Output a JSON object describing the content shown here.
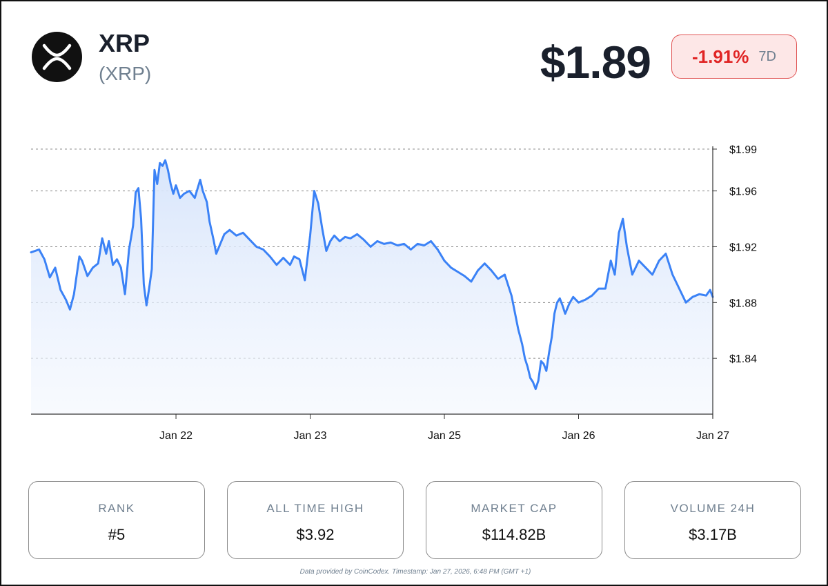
{
  "coin": {
    "name": "XRP",
    "symbol": "(XRP)",
    "logo_icon": "xrp-logo-icon"
  },
  "price": "$1.89",
  "change": {
    "value": "-1.91%",
    "period": "7D",
    "color": "#e02424"
  },
  "stats": [
    {
      "label": "RANK",
      "value": "#5"
    },
    {
      "label": "ALL TIME HIGH",
      "value": "$3.92"
    },
    {
      "label": "MARKET CAP",
      "value": "$114.82B"
    },
    {
      "label": "VOLUME 24H",
      "value": "$3.17B"
    }
  ],
  "footer": "Data provided by CoinCodex. Timestamp: Jan 27, 2026, 6:48 PM (GMT +1)",
  "chart_data": {
    "type": "area",
    "title": "",
    "xlabel": "",
    "ylabel": "",
    "grid": true,
    "line_color": "#3b82f6",
    "fill_color": "#dbe8fb",
    "ylim": [
      1.8,
      1.99
    ],
    "xlim": [
      -1.08,
      4.0
    ],
    "y_ticks": [
      1.99,
      1.96,
      1.92,
      1.88,
      1.84
    ],
    "y_tick_labels": [
      "$1.99",
      "$1.96",
      "$1.92",
      "$1.88",
      "$1.84"
    ],
    "x_ticks": [
      0,
      1,
      2,
      3,
      4
    ],
    "x_tick_labels": [
      "Jan 22",
      "Jan 23",
      "Jan 25",
      "Jan 26",
      "Jan 27"
    ],
    "series": [
      {
        "x": [
          -1.08,
          -1.02,
          -0.98,
          -0.94,
          -0.9,
          -0.86,
          -0.82,
          -0.79,
          -0.76,
          -0.72,
          -0.7,
          -0.66,
          -0.62,
          -0.58,
          -0.55,
          -0.52,
          -0.5,
          -0.47,
          -0.44,
          -0.41,
          -0.38,
          -0.35,
          -0.32,
          -0.3,
          -0.28,
          -0.26,
          -0.24,
          -0.22,
          -0.2,
          -0.18,
          -0.16,
          -0.14,
          -0.12,
          -0.1,
          -0.08,
          -0.06,
          -0.04,
          -0.02,
          0.0,
          0.03,
          0.06,
          0.1,
          0.14,
          0.18,
          0.2,
          0.23,
          0.25,
          0.28,
          0.3,
          0.33,
          0.36,
          0.4,
          0.45,
          0.5,
          0.55,
          0.6,
          0.65,
          0.7,
          0.75,
          0.8,
          0.85,
          0.88,
          0.92,
          0.96,
          1.0,
          1.03,
          1.06,
          1.09,
          1.12,
          1.15,
          1.18,
          1.22,
          1.26,
          1.3,
          1.35,
          1.4,
          1.45,
          1.5,
          1.55,
          1.6,
          1.65,
          1.7,
          1.75,
          1.8,
          1.85,
          1.9,
          1.95,
          2.0,
          2.05,
          2.1,
          2.15,
          2.2,
          2.25,
          2.3,
          2.35,
          2.4,
          2.45,
          2.5,
          2.55,
          2.58,
          2.6,
          2.62,
          2.64,
          2.66,
          2.68,
          2.7,
          2.72,
          2.74,
          2.76,
          2.78,
          2.8,
          2.82,
          2.84,
          2.86,
          2.88,
          2.9,
          2.93,
          2.96,
          3.0,
          3.05,
          3.1,
          3.15,
          3.2,
          3.24,
          3.27,
          3.3,
          3.33,
          3.36,
          3.4,
          3.45,
          3.5,
          3.55,
          3.6,
          3.65,
          3.7,
          3.75,
          3.8,
          3.85,
          3.9,
          3.95,
          3.98,
          4.0
        ],
        "values": [
          1.916,
          1.918,
          1.911,
          1.898,
          1.905,
          1.889,
          1.882,
          1.875,
          1.886,
          1.913,
          1.91,
          1.899,
          1.905,
          1.908,
          1.926,
          1.915,
          1.924,
          1.907,
          1.911,
          1.905,
          1.886,
          1.918,
          1.935,
          1.959,
          1.962,
          1.94,
          1.893,
          1.878,
          1.89,
          1.904,
          1.975,
          1.965,
          1.98,
          1.978,
          1.982,
          1.975,
          1.965,
          1.958,
          1.964,
          1.955,
          1.958,
          1.96,
          1.955,
          1.968,
          1.96,
          1.952,
          1.938,
          1.925,
          1.915,
          1.922,
          1.929,
          1.932,
          1.928,
          1.93,
          1.925,
          1.92,
          1.918,
          1.913,
          1.907,
          1.912,
          1.907,
          1.913,
          1.911,
          1.896,
          1.928,
          1.96,
          1.951,
          1.933,
          1.917,
          1.924,
          1.928,
          1.924,
          1.927,
          1.926,
          1.929,
          1.925,
          1.92,
          1.924,
          1.922,
          1.923,
          1.921,
          1.922,
          1.918,
          1.922,
          1.921,
          1.924,
          1.918,
          1.91,
          1.905,
          1.902,
          1.899,
          1.895,
          1.903,
          1.908,
          1.903,
          1.897,
          1.9,
          1.885,
          1.861,
          1.85,
          1.84,
          1.834,
          1.826,
          1.823,
          1.818,
          1.824,
          1.838,
          1.836,
          1.831,
          1.844,
          1.855,
          1.872,
          1.88,
          1.883,
          1.878,
          1.872,
          1.879,
          1.884,
          1.88,
          1.882,
          1.885,
          1.89,
          1.89,
          1.91,
          1.9,
          1.93,
          1.94,
          1.92,
          1.9,
          1.91,
          1.905,
          1.9,
          1.91,
          1.915,
          1.9,
          1.89,
          1.88,
          1.884,
          1.886,
          1.885,
          1.889,
          1.884
        ]
      }
    ]
  }
}
